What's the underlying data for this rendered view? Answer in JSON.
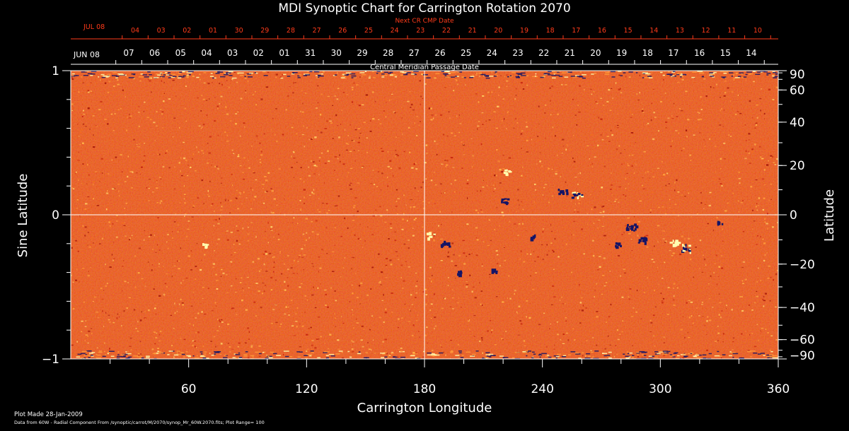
{
  "title": "MDI Synoptic Chart for Carrington Rotation 2070",
  "chart_data": {
    "type": "heatmap",
    "title": "MDI Synoptic Chart for Carrington Rotation 2070",
    "xlabel": "Carrington Longitude",
    "ylabel_left": "Sine Latitude",
    "ylabel_right": "Latitude",
    "xlim": [
      0,
      360
    ],
    "ylim": [
      -1,
      1
    ],
    "x_ticks": [
      60,
      120,
      180,
      240,
      300,
      360
    ],
    "y_left_ticks": [
      -1,
      0,
      1
    ],
    "y_right_ticks": [
      90,
      60,
      40,
      20,
      0,
      -20,
      -40,
      -60,
      -90
    ],
    "gridlines": {
      "longitude": 180,
      "sine_latitude": 0
    },
    "plot_range": 100,
    "cmp_axis_label": "Central Meridian Passage Date",
    "cmp_month_label": "JUN 08",
    "cmp_dates": [
      "07",
      "06",
      "05",
      "04",
      "03",
      "02",
      "01",
      "31",
      "30",
      "29",
      "28",
      "27",
      "26",
      "25",
      "24",
      "23",
      "22",
      "21",
      "20",
      "19",
      "18",
      "17",
      "16",
      "15",
      "14"
    ],
    "next_cr_label": "Next CR CMP Date",
    "next_cr_month_label": "JUL 08",
    "next_cr_dates": [
      "04",
      "03",
      "02",
      "01",
      "30",
      "29",
      "28",
      "27",
      "26",
      "25",
      "24",
      "23",
      "22",
      "21",
      "20",
      "19",
      "18",
      "17",
      "16",
      "15",
      "14",
      "13",
      "12",
      "11",
      "10"
    ],
    "active_regions": [
      {
        "longitude": 257,
        "sine_latitude": 0.15,
        "polarity": "mixed",
        "strength": 1.0
      },
      {
        "longitude": 250,
        "sine_latitude": 0.16,
        "polarity": "negative",
        "strength": 0.8
      },
      {
        "longitude": 312,
        "sine_latitude": -0.22,
        "polarity": "mixed",
        "strength": 1.0
      },
      {
        "longitude": 307,
        "sine_latitude": -0.19,
        "polarity": "positive",
        "strength": 0.8
      },
      {
        "longitude": 285,
        "sine_latitude": -0.08,
        "polarity": "negative",
        "strength": 0.9
      },
      {
        "longitude": 290,
        "sine_latitude": -0.17,
        "polarity": "negative",
        "strength": 0.7
      },
      {
        "longitude": 278,
        "sine_latitude": -0.2,
        "polarity": "negative",
        "strength": 0.6
      },
      {
        "longitude": 183,
        "sine_latitude": -0.14,
        "polarity": "positive",
        "strength": 0.7
      },
      {
        "longitude": 190,
        "sine_latitude": -0.2,
        "polarity": "negative",
        "strength": 0.8
      },
      {
        "longitude": 220,
        "sine_latitude": 0.1,
        "polarity": "negative",
        "strength": 0.7
      },
      {
        "longitude": 221,
        "sine_latitude": 0.3,
        "polarity": "positive",
        "strength": 0.6
      },
      {
        "longitude": 68,
        "sine_latitude": -0.21,
        "polarity": "positive",
        "strength": 0.6
      },
      {
        "longitude": 198,
        "sine_latitude": -0.4,
        "polarity": "negative",
        "strength": 0.5
      },
      {
        "longitude": 215,
        "sine_latitude": -0.38,
        "polarity": "negative",
        "strength": 0.4
      },
      {
        "longitude": 330,
        "sine_latitude": -0.05,
        "polarity": "negative",
        "strength": 0.4
      },
      {
        "longitude": 235,
        "sine_latitude": -0.15,
        "polarity": "negative",
        "strength": 0.5
      }
    ]
  },
  "footer": {
    "plot_made": "Plot Made 28-Jan-2009",
    "data_from": "Data from 60W - Radial Component From /synoptic/carrot/M/2070/synop_Mr_60W.2070.fits; Plot Range=  100"
  },
  "colors": {
    "background": "#000000",
    "text": "#ffffff",
    "next_cr": "#ff3b1a",
    "field_base": "#e6491a",
    "positive": "#ffffb0",
    "negative": "#141466",
    "gridline": "#ffffff"
  }
}
